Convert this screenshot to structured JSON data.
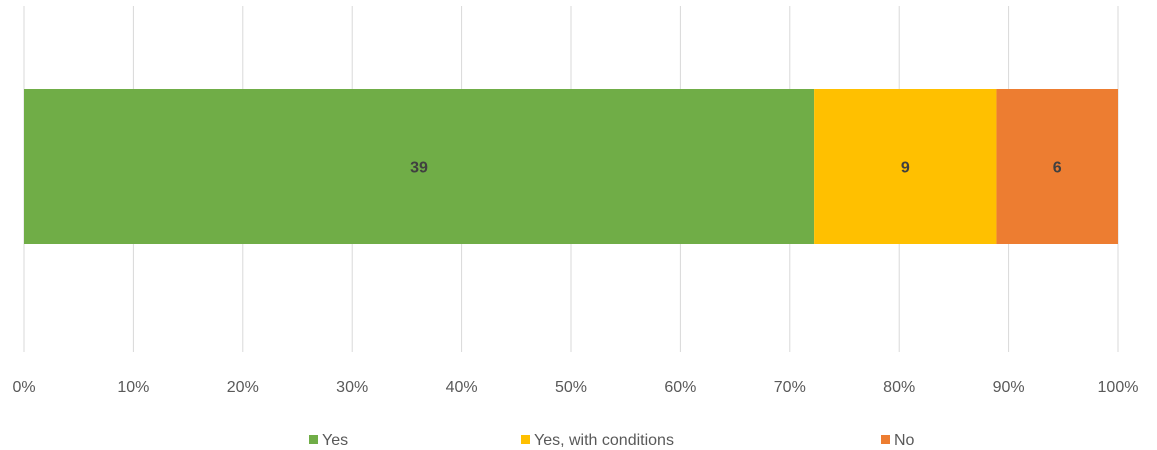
{
  "chart_data": {
    "type": "bar",
    "orientation": "horizontal",
    "stacking": "percent",
    "categories": [
      ""
    ],
    "series": [
      {
        "name": "Yes",
        "values": [
          39
        ],
        "color": "#70ad47"
      },
      {
        "name": "Yes, with conditions",
        "values": [
          9
        ],
        "color": "#ffc000"
      },
      {
        "name": "No",
        "values": [
          6
        ],
        "color": "#ed7d31"
      }
    ],
    "x_ticks": [
      "0%",
      "10%",
      "20%",
      "30%",
      "40%",
      "50%",
      "60%",
      "70%",
      "80%",
      "90%",
      "100%"
    ],
    "xlim": [
      0,
      100
    ],
    "grid": "vertical",
    "legend": "bottom",
    "data_labels": true,
    "title": "",
    "xlabel": "",
    "ylabel": ""
  }
}
